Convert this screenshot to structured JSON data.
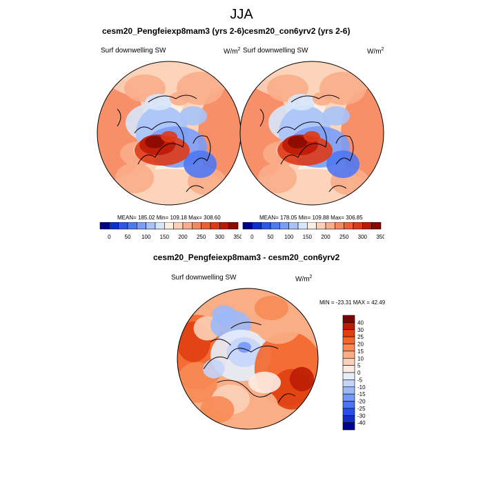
{
  "figure": {
    "title": "JJA"
  },
  "panels": {
    "left": {
      "title": "cesm20_Pengfeiexp8mam3 (yrs 2-6)",
      "variable": "Surf downwelling SW",
      "units_base": "W/m",
      "units_exp": "2",
      "stats": "MEAN= 185.02  Min= 109.18  Max= 308.60"
    },
    "right": {
      "title": "cesm20_con6yrv2 (yrs 2-6)",
      "variable": "Surf downwelling SW",
      "units_base": "W/m",
      "units_exp": "2",
      "stats": "MEAN= 178.05  Min= 109.88  Max= 306.85"
    },
    "diff": {
      "title": "cesm20_Pengfeiexp8mam3 - cesm20_con6yrv2",
      "variable": "Surf downwelling SW",
      "units_base": "W/m",
      "units_exp": "2",
      "stats": "MIN = -23.31 MAX =  42.49"
    }
  },
  "chart_data": [
    {
      "type": "heatmap",
      "projection": "north-polar-stereographic",
      "panel": "left",
      "colorbar": {
        "orientation": "horizontal",
        "tick_labels": [
          "0",
          "50",
          "100",
          "150",
          "200",
          "250",
          "300",
          "350"
        ],
        "colors": [
          "#00008b",
          "#0c2fcf",
          "#2b57ee",
          "#4f78f3",
          "#7a9df7",
          "#a9c3f9",
          "#d6e6fb",
          "#fdeee2",
          "#fcd0b6",
          "#f9ad8a",
          "#f6885f",
          "#ef5d35",
          "#de3a17",
          "#bd1a05",
          "#8a0a00"
        ]
      },
      "field_summary": {
        "mean": 185.02,
        "min": 109.18,
        "max": 308.6
      }
    },
    {
      "type": "heatmap",
      "projection": "north-polar-stereographic",
      "panel": "right",
      "colorbar": {
        "orientation": "horizontal",
        "tick_labels": [
          "0",
          "50",
          "100",
          "150",
          "200",
          "250",
          "300",
          "350"
        ],
        "colors": [
          "#00008b",
          "#0c2fcf",
          "#2b57ee",
          "#4f78f3",
          "#7a9df7",
          "#a9c3f9",
          "#d6e6fb",
          "#fdeee2",
          "#fcd0b6",
          "#f9ad8a",
          "#f6885f",
          "#ef5d35",
          "#de3a17",
          "#bd1a05",
          "#8a0a00"
        ]
      },
      "field_summary": {
        "mean": 178.05,
        "min": 109.88,
        "max": 306.85
      }
    },
    {
      "type": "heatmap",
      "projection": "north-polar-stereographic",
      "panel": "diff",
      "colorbar": {
        "orientation": "vertical",
        "tick_labels": [
          "40",
          "30",
          "25",
          "20",
          "15",
          "10",
          "5",
          "0",
          "-5",
          "-10",
          "-15",
          "-20",
          "-25",
          "-30",
          "-40"
        ],
        "colors": [
          "#7a0400",
          "#bc1c04",
          "#e0400f",
          "#f2662c",
          "#f78b55",
          "#f9ae85",
          "#fbd0b8",
          "#fdece3",
          "#e6eefc",
          "#c4d5fb",
          "#9cb9f8",
          "#7398f5",
          "#4a74f0",
          "#2850e8",
          "#1230c4",
          "#00008b"
        ]
      },
      "field_summary": {
        "min": -23.31,
        "max": 42.49
      }
    }
  ]
}
